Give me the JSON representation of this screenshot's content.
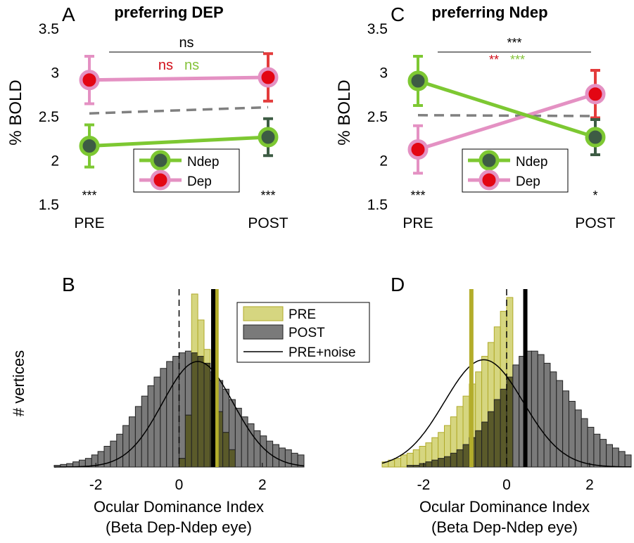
{
  "colors": {
    "ndep": "#7dc832",
    "ndep_fill": "#3d5c44",
    "dep_line": "#e491c3",
    "dep_fill": "#e30613",
    "dep_err": "#e33c3c",
    "gray_dash": "#808080",
    "red_text": "#d10f1a",
    "green_text": "#84c23a",
    "pre_fill": "#d6d680",
    "pre_edge": "#b0aa2a",
    "pre_line": "#b3ad2b",
    "post_fill": "#7a7a7a",
    "post_edge": "#222222",
    "overlap_fill": "#5a5a2a"
  },
  "chart_data": [
    {
      "panel": "A",
      "type": "line",
      "title": "preferring DEP",
      "ylabel": "% BOLD",
      "categories": [
        "PRE",
        "POST"
      ],
      "ylim": [
        1.5,
        3.5
      ],
      "yticks": [
        "1.5",
        "2",
        "2.5",
        "3",
        "3.5"
      ],
      "series": [
        {
          "name": "Ndep",
          "values": [
            2.16,
            2.26
          ],
          "err": [
            0.24,
            0.21
          ]
        },
        {
          "name": "Dep",
          "values": [
            2.91,
            2.94
          ],
          "err": [
            0.27,
            0.27
          ]
        },
        {
          "name": "mean",
          "values": [
            2.53,
            2.6
          ]
        }
      ],
      "legend": [
        "Ndep",
        "Dep"
      ],
      "annotations": {
        "bracket": "ns",
        "dep_test": "ns",
        "ndep_test": "ns",
        "pre_sig": "***",
        "post_sig": "***"
      }
    },
    {
      "panel": "C",
      "type": "line",
      "title": "preferring Ndep",
      "ylabel": "% BOLD",
      "categories": [
        "PRE",
        "POST"
      ],
      "ylim": [
        1.5,
        3.5
      ],
      "yticks": [
        "1.5",
        "2",
        "2.5",
        "3",
        "3.5"
      ],
      "series": [
        {
          "name": "Ndep",
          "values": [
            2.9,
            2.26
          ],
          "err": [
            0.28,
            0.2
          ]
        },
        {
          "name": "Dep",
          "values": [
            2.12,
            2.75
          ],
          "err": [
            0.27,
            0.27
          ]
        },
        {
          "name": "mean",
          "values": [
            2.51,
            2.5
          ]
        }
      ],
      "legend": [
        "Ndep",
        "Dep"
      ],
      "annotations": {
        "bracket": "***",
        "dep_test": "**",
        "ndep_test": "***",
        "pre_sig": "***",
        "post_sig": "*"
      }
    },
    {
      "panel": "B",
      "type": "bar",
      "subtype": "histogram",
      "xlabel": "Ocular Dominance Index",
      "xlabel2": "(Beta Dep-Ndep eye)",
      "ylabel": "# vertices",
      "xlim": [
        -3,
        3
      ],
      "xticks": [
        "-2",
        "0",
        "2"
      ],
      "bin_start": -3,
      "bin_width": 0.15,
      "pre": [
        0,
        0,
        0,
        0,
        0,
        0,
        0,
        0,
        0,
        0,
        0,
        0,
        0,
        0,
        0,
        0,
        0,
        0,
        0,
        0,
        0.05,
        0.3,
        1.0,
        0.85,
        0.68,
        0.5,
        0.32,
        0.2,
        0.1,
        0,
        0,
        0,
        0,
        0,
        0,
        0,
        0,
        0,
        0,
        0
      ],
      "post": [
        0.01,
        0.015,
        0.02,
        0.03,
        0.04,
        0.05,
        0.07,
        0.09,
        0.12,
        0.15,
        0.19,
        0.24,
        0.29,
        0.35,
        0.41,
        0.47,
        0.52,
        0.57,
        0.61,
        0.64,
        0.66,
        0.67,
        0.66,
        0.64,
        0.6,
        0.55,
        0.5,
        0.45,
        0.39,
        0.34,
        0.29,
        0.25,
        0.21,
        0.18,
        0.15,
        0.13,
        0.11,
        0.1,
        0.08,
        0.07
      ],
      "noise_mean": 0.45,
      "noise_sd": 0.85,
      "noise_peak": 0.61,
      "pre_median": 0.9,
      "post_median": 0.82,
      "zero_line": 0,
      "legend": [
        "PRE",
        "POST",
        "PRE+noise"
      ]
    },
    {
      "panel": "D",
      "type": "bar",
      "subtype": "histogram",
      "xlabel": "Ocular Dominance Index",
      "xlabel2": "(Beta Dep-Ndep eye)",
      "xlim": [
        -3,
        3
      ],
      "xticks": [
        "-2",
        "0",
        "2"
      ],
      "bin_start": -3,
      "bin_width": 0.15,
      "pre": [
        0.03,
        0.04,
        0.05,
        0.07,
        0.08,
        0.1,
        0.12,
        0.14,
        0.17,
        0.2,
        0.24,
        0.29,
        0.35,
        0.41,
        0.48,
        0.55,
        0.64,
        0.72,
        0.81,
        0.9,
        0.98,
        0,
        0,
        0,
        0,
        0,
        0,
        0,
        0,
        0,
        0,
        0,
        0,
        0,
        0,
        0,
        0,
        0,
        0,
        0
      ],
      "post": [
        0,
        0,
        0,
        0,
        0.01,
        0.01,
        0.02,
        0.03,
        0.04,
        0.05,
        0.06,
        0.08,
        0.1,
        0.13,
        0.17,
        0.21,
        0.26,
        0.32,
        0.39,
        0.45,
        0.52,
        0.59,
        0.64,
        0.67,
        0.67,
        0.65,
        0.6,
        0.55,
        0.5,
        0.44,
        0.38,
        0.33,
        0.28,
        0.23,
        0.19,
        0.16,
        0.13,
        0.11,
        0.09,
        0.07
      ],
      "noise_mean": -0.55,
      "noise_sd": 0.95,
      "noise_peak": 0.62,
      "pre_median": -0.85,
      "post_median": 0.45,
      "zero_line": 0
    }
  ],
  "panel_labels": [
    "A",
    "B",
    "C",
    "D"
  ]
}
